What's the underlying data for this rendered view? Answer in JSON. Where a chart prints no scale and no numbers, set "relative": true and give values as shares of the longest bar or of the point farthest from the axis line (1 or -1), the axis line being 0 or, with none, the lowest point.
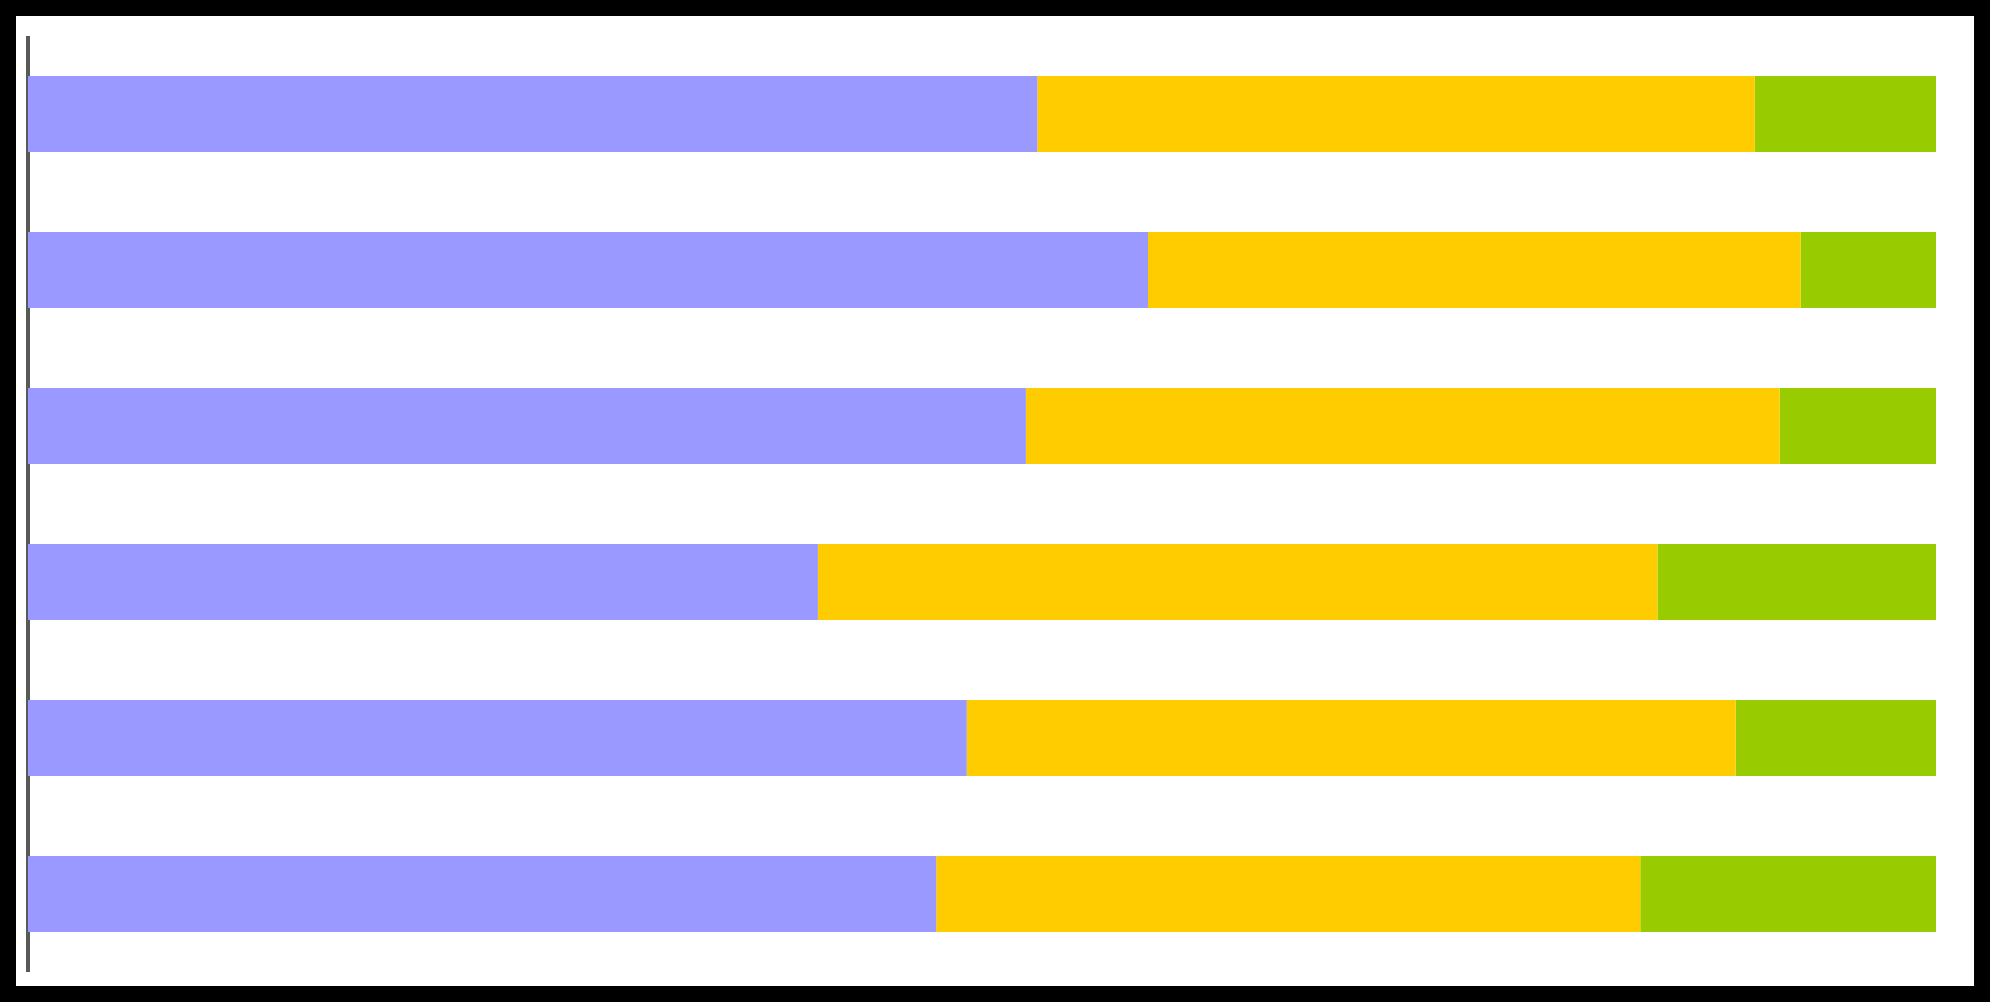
{
  "chart_data": {
    "type": "bar",
    "orientation": "horizontal",
    "stacked": true,
    "relative": true,
    "categories": [
      null,
      null,
      null,
      null,
      null,
      null
    ],
    "series": [
      {
        "color": "#9999ff",
        "values": [
          0.529,
          0.587,
          0.523,
          0.414,
          0.492,
          0.476
        ]
      },
      {
        "color": "#ffcc00",
        "values": [
          0.376,
          0.342,
          0.395,
          0.44,
          0.403,
          0.369
        ]
      },
      {
        "color": "#99cc00",
        "values": [
          0.095,
          0.071,
          0.082,
          0.146,
          0.105,
          0.155
        ]
      }
    ]
  }
}
